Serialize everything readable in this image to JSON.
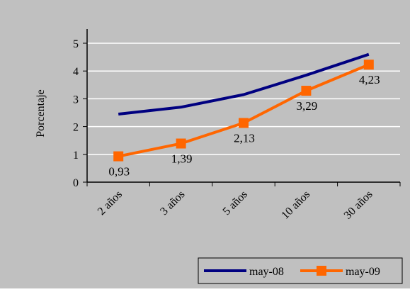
{
  "chart_data": {
    "type": "line",
    "title": "",
    "xlabel": "",
    "ylabel": "Porcentaje",
    "categories": [
      "2 años",
      "3 años",
      "5 años",
      "10 años",
      "30 años"
    ],
    "ylim": [
      0,
      5
    ],
    "yticks": [
      0,
      1,
      2,
      3,
      4,
      5
    ],
    "grid": "horizontal major gridlines",
    "legend_position": "bottom-right",
    "series": [
      {
        "name": "may-08",
        "values": [
          2.45,
          2.7,
          3.15,
          3.85,
          4.6
        ],
        "color": "#000080",
        "marker": "none",
        "labels": []
      },
      {
        "name": "may-09",
        "values": [
          0.93,
          1.39,
          2.13,
          3.29,
          4.23
        ],
        "color": "#FF6600",
        "marker": "square",
        "labels": [
          "0,93",
          "1,39",
          "2,13",
          "3,29",
          "4,23"
        ]
      }
    ]
  },
  "colors": {
    "page_background": "#C0C0C0",
    "plot_background": "#C0C0C0",
    "gridline": "#FFFFFF",
    "axis": "#000000"
  }
}
